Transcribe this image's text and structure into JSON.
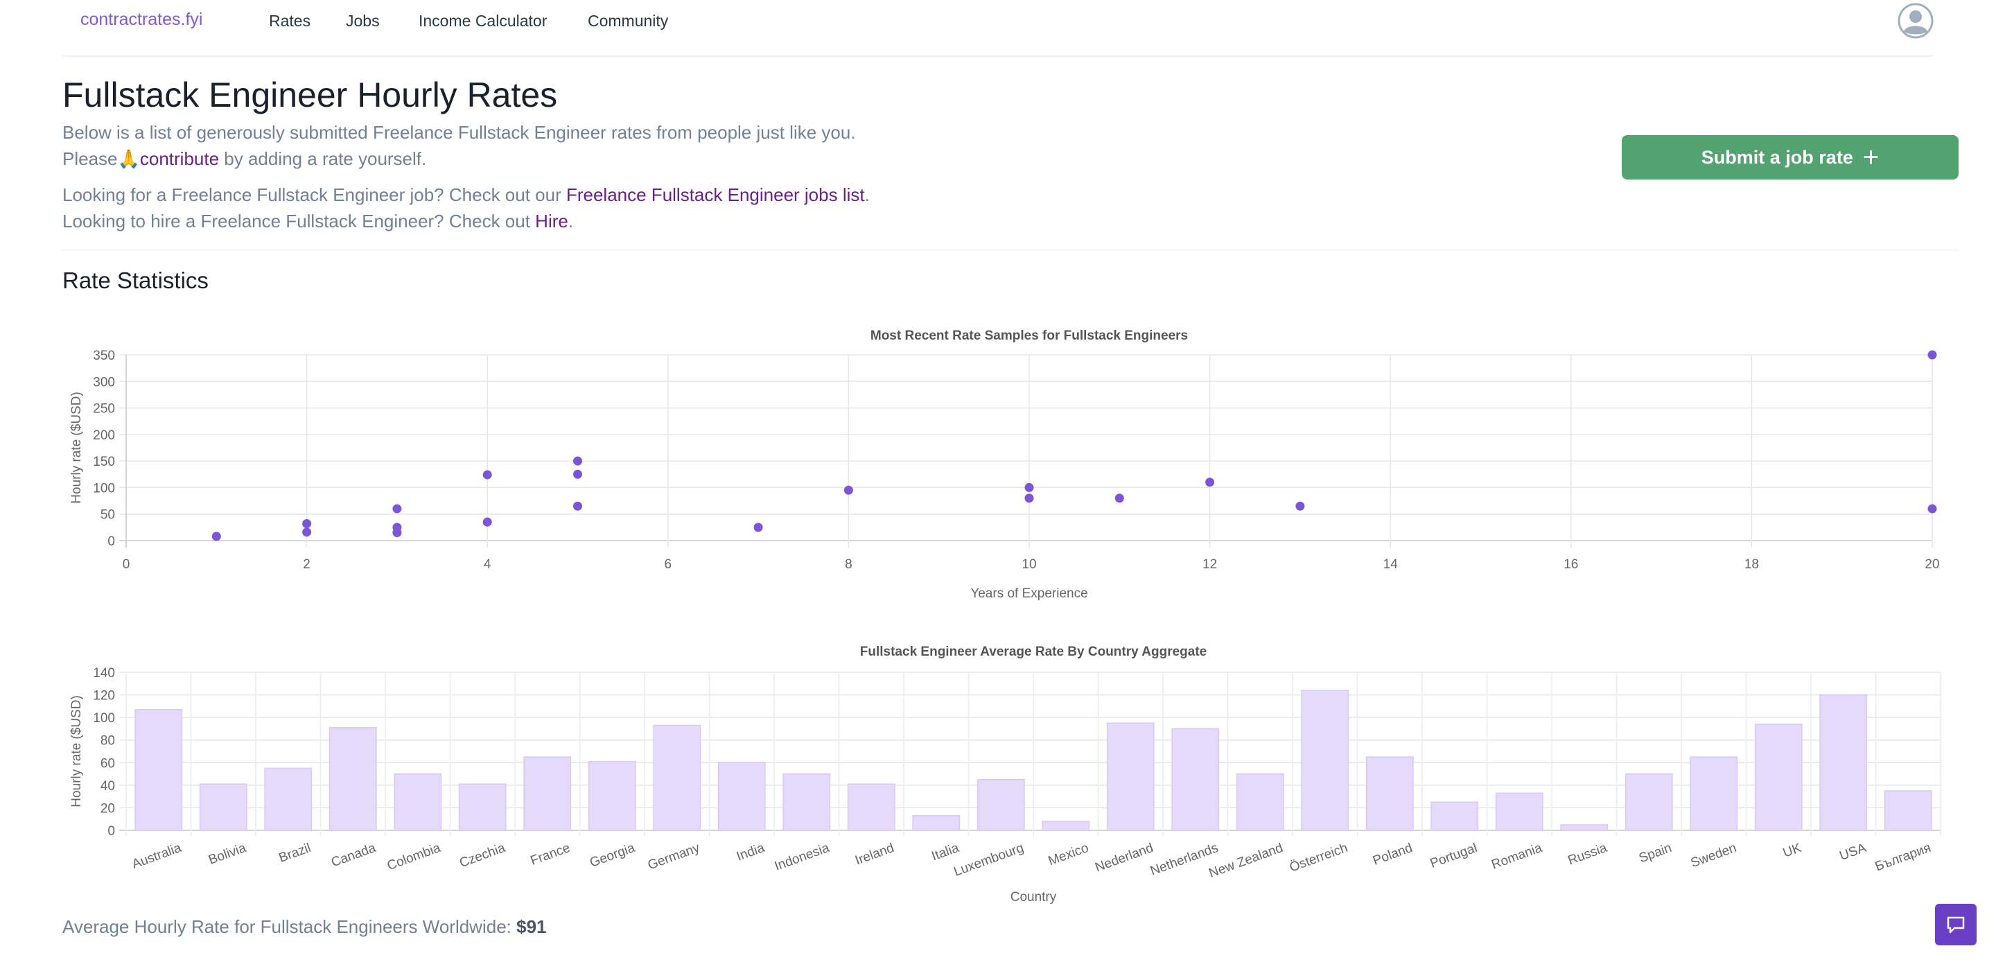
{
  "nav": {
    "brand": "contractrates.fyi",
    "links": [
      "Rates",
      "Jobs",
      "Income Calculator",
      "Community"
    ]
  },
  "header": {
    "title": "Fullstack Engineer Hourly Rates",
    "intro_line1": "Below is a list of generously submitted Freelance Fullstack Engineer rates from people just like you.",
    "please_text": "Please🙏",
    "contribute_link": "contribute",
    "contribute_suffix": " by adding a rate yourself.",
    "jobs_prefix": "Looking for a Freelance Fullstack Engineer job? Check out our ",
    "jobs_link": "Freelance Fullstack Engineer jobs list",
    "jobs_suffix": ".",
    "hire_prefix": "Looking to hire a Freelance Fullstack Engineer? Check out ",
    "hire_link": "Hire",
    "hire_suffix": ".",
    "submit_button": "Submit a job rate"
  },
  "stats": {
    "title": "Rate Statistics",
    "avg_prefix": "Average Hourly Rate for Fullstack Engineers Worldwide: ",
    "avg_value": "$91"
  },
  "colors": {
    "brand": "#805ad5",
    "link": "#6b1f8a",
    "button": "#52a370",
    "point": "#7b55d6",
    "bar_fill": "#e6dafa",
    "bar_stroke": "#d9c8f7",
    "chat": "#6b3fc5"
  },
  "icons": {
    "avatar": "user-circle-icon",
    "submit": "plus-icon",
    "chat": "chat-bubble-icon"
  },
  "chart_data": [
    {
      "type": "scatter",
      "title": "Most Recent Rate Samples for Fullstack Engineers",
      "xlabel": "Years of Experience",
      "ylabel": "Hourly rate ($USD)",
      "xlim": [
        0,
        20
      ],
      "ylim": [
        0,
        350
      ],
      "xticks": [
        0,
        2,
        4,
        6,
        8,
        10,
        12,
        14,
        16,
        18,
        20
      ],
      "yticks": [
        0,
        50,
        100,
        150,
        200,
        250,
        300,
        350
      ],
      "grid": true,
      "points": [
        [
          1,
          8
        ],
        [
          2,
          32
        ],
        [
          2,
          16
        ],
        [
          3,
          60
        ],
        [
          3,
          25
        ],
        [
          3,
          15
        ],
        [
          4,
          124
        ],
        [
          4,
          35
        ],
        [
          5,
          150
        ],
        [
          5,
          125
        ],
        [
          5,
          65
        ],
        [
          7,
          25
        ],
        [
          8,
          95
        ],
        [
          10,
          100
        ],
        [
          10,
          80
        ],
        [
          11,
          80
        ],
        [
          12,
          110
        ],
        [
          13,
          65
        ],
        [
          20,
          350
        ],
        [
          20,
          60
        ]
      ]
    },
    {
      "type": "bar",
      "title": "Fullstack Engineer Average Rate By Country Aggregate",
      "xlabel": "Country",
      "ylabel": "Hourly rate ($USD)",
      "ylim": [
        0,
        140
      ],
      "yticks": [
        0,
        20,
        40,
        60,
        80,
        100,
        120,
        140
      ],
      "grid": true,
      "categories": [
        "Australia",
        "Bolivia",
        "Brazil",
        "Canada",
        "Colombia",
        "Czechia",
        "France",
        "Georgia",
        "Germany",
        "India",
        "Indonesia",
        "Ireland",
        "Italia",
        "Luxembourg",
        "Mexico",
        "Nederland",
        "Netherlands",
        "New Zealand",
        "Österreich",
        "Poland",
        "Portugal",
        "Romania",
        "Russia",
        "Spain",
        "Sweden",
        "UK",
        "USA",
        "България"
      ],
      "values": [
        107,
        41,
        55,
        91,
        50,
        41,
        65,
        61,
        93,
        60,
        50,
        41,
        13,
        45,
        8,
        95,
        90,
        50,
        124,
        65,
        25,
        33,
        5,
        50,
        65,
        94,
        120,
        35
      ]
    }
  ]
}
